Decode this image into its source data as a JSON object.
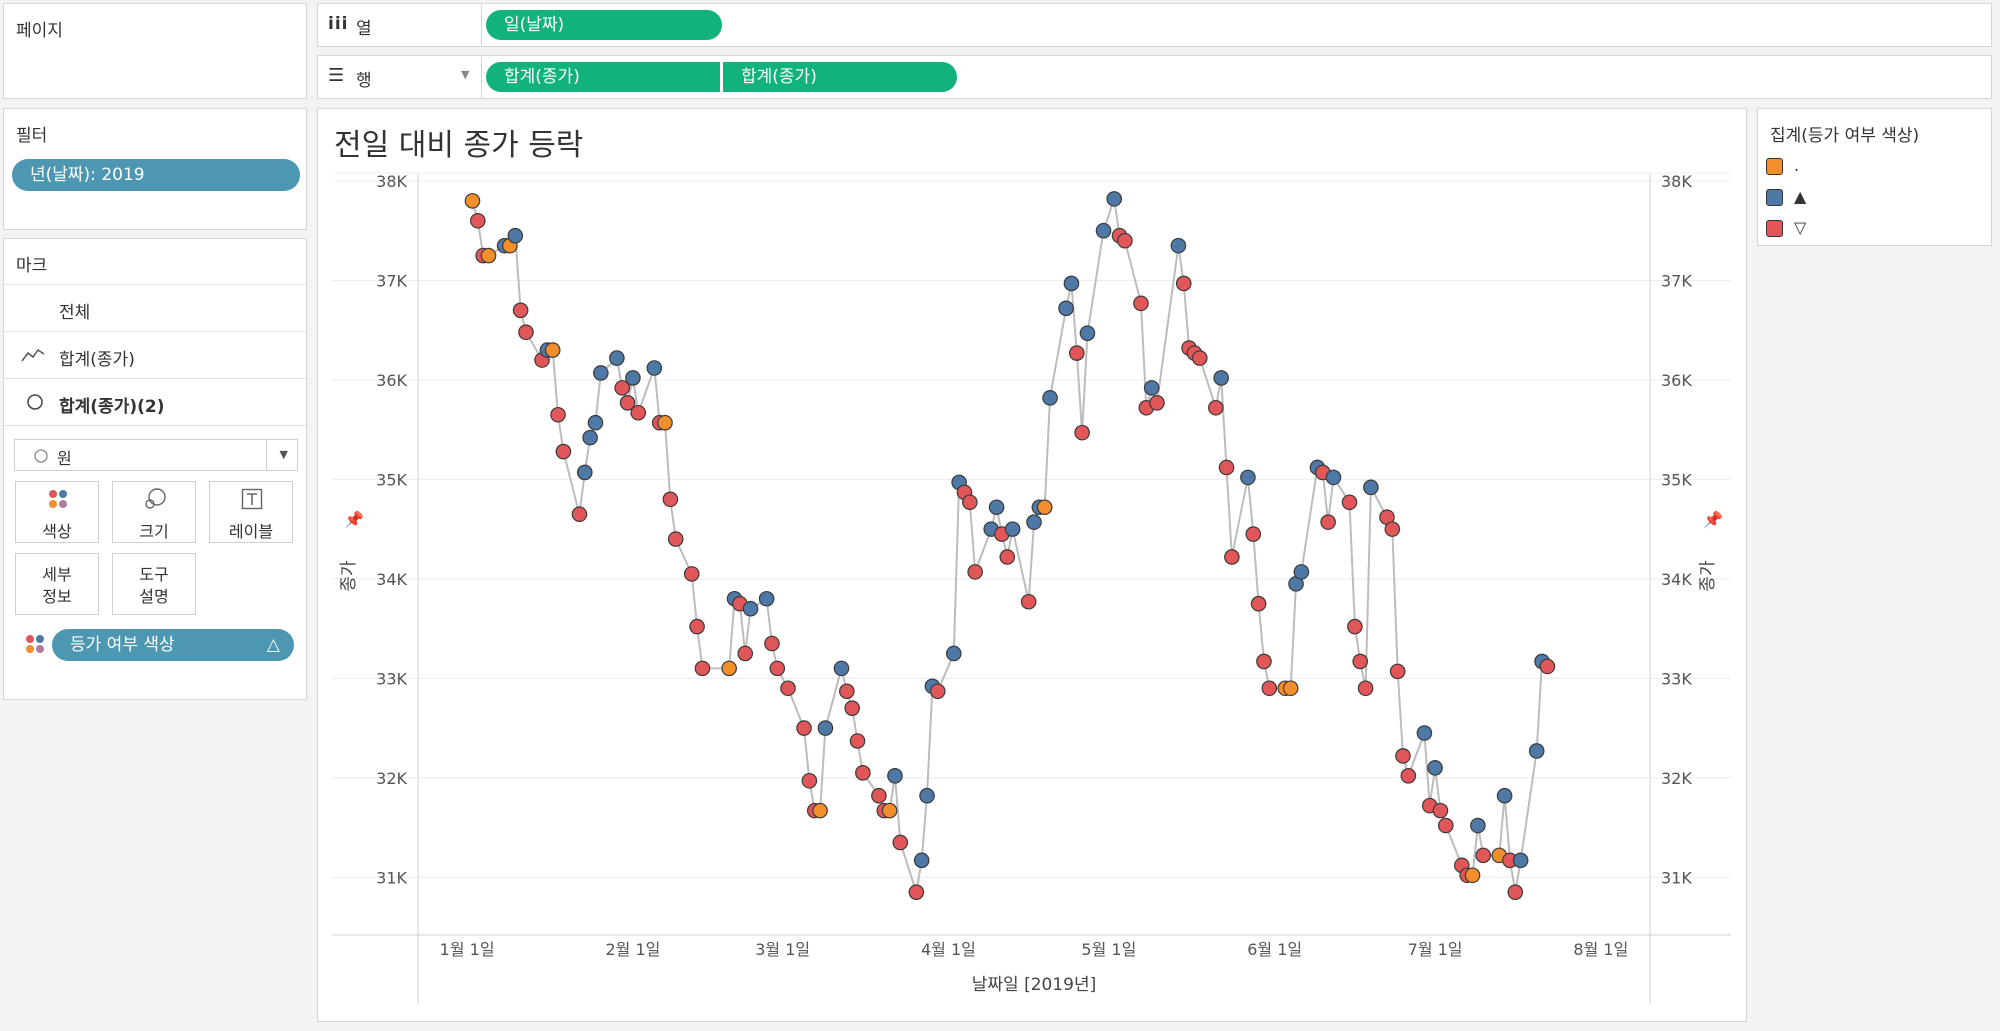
{
  "pages_panel": {
    "title": "페이지"
  },
  "columns_shelf": {
    "icon": "iii",
    "label": "열",
    "pills": [
      "일(날짜)"
    ]
  },
  "rows_shelf": {
    "label": "행",
    "pills": [
      "합계(종가)",
      "합계(종가)"
    ]
  },
  "filters_panel": {
    "title": "필터",
    "pills": [
      "년(날짜): 2019"
    ]
  },
  "marks_panel": {
    "title": "마크",
    "items": [
      {
        "label": "전체"
      },
      {
        "label": "합계(종가)"
      },
      {
        "label": "합계(종가)(2)"
      }
    ],
    "mark_type": "원",
    "buttons": [
      {
        "label": "색상"
      },
      {
        "label": "크기"
      },
      {
        "label": "레이블"
      },
      {
        "label": "세부\n정보"
      },
      {
        "label": "도구\n설명"
      }
    ],
    "color_field": "등가 여부 색상"
  },
  "legend": {
    "title": "집계(등가 여부 색상)",
    "items": [
      {
        "label": ".",
        "color": "#f28e2b"
      },
      {
        "label": "▲",
        "color": "#4e79a7"
      },
      {
        "label": "▽",
        "color": "#e15759"
      }
    ]
  },
  "chart_data": {
    "type": "line",
    "title": "전일 대비 종가 등락",
    "xlabel": "날짜일 [2019년]",
    "ylabel_left": "종가",
    "ylabel_right": "종가",
    "x_tick_labels": [
      "1월 1일",
      "2월 1일",
      "3월 1일",
      "4월 1일",
      "5월 1일",
      "6월 1일",
      "7월 1일",
      "8월 1일"
    ],
    "x_tick_days": [
      1,
      32,
      60,
      91,
      121,
      152,
      182,
      213
    ],
    "y_tick_labels": [
      "31K",
      "32K",
      "33K",
      "34K",
      "35K",
      "36K",
      "37K",
      "38K"
    ],
    "y_ticks": [
      31000,
      32000,
      33000,
      34000,
      35000,
      36000,
      37000,
      38000
    ],
    "ylim": [
      30500,
      38000
    ],
    "xlim": [
      -8,
      222
    ],
    "line_color": "#bcbcbc",
    "colors": {
      ".": "#f28e2b",
      "▲": "#4e79a7",
      "▽": "#e15759"
    },
    "series": [
      {
        "day": 2,
        "close": 37800,
        "sign": "."
      },
      {
        "day": 3,
        "close": 37600,
        "sign": "▽"
      },
      {
        "day": 4,
        "close": 37250,
        "sign": "▽"
      },
      {
        "day": 5,
        "close": 37250,
        "sign": "."
      },
      {
        "day": 8,
        "close": 37350,
        "sign": "▲"
      },
      {
        "day": 9,
        "close": 37350,
        "sign": "."
      },
      {
        "day": 10,
        "close": 37450,
        "sign": "▲"
      },
      {
        "day": 11,
        "close": 36700,
        "sign": "▽"
      },
      {
        "day": 12,
        "close": 36480,
        "sign": "▽"
      },
      {
        "day": 15,
        "close": 36200,
        "sign": "▽"
      },
      {
        "day": 16,
        "close": 36300,
        "sign": "▲"
      },
      {
        "day": 17,
        "close": 36300,
        "sign": "."
      },
      {
        "day": 18,
        "close": 35650,
        "sign": "▽"
      },
      {
        "day": 19,
        "close": 35280,
        "sign": "▽"
      },
      {
        "day": 22,
        "close": 34650,
        "sign": "▽"
      },
      {
        "day": 23,
        "close": 35070,
        "sign": "▲"
      },
      {
        "day": 24,
        "close": 35420,
        "sign": "▲"
      },
      {
        "day": 25,
        "close": 35570,
        "sign": "▲"
      },
      {
        "day": 26,
        "close": 36070,
        "sign": "▲"
      },
      {
        "day": 29,
        "close": 36220,
        "sign": "▲"
      },
      {
        "day": 30,
        "close": 35920,
        "sign": "▽"
      },
      {
        "day": 31,
        "close": 35770,
        "sign": "▽"
      },
      {
        "day": 32,
        "close": 36020,
        "sign": "▲"
      },
      {
        "day": 33,
        "close": 35670,
        "sign": "▽"
      },
      {
        "day": 36,
        "close": 36120,
        "sign": "▲"
      },
      {
        "day": 37,
        "close": 35570,
        "sign": "▽"
      },
      {
        "day": 38,
        "close": 35570,
        "sign": "."
      },
      {
        "day": 39,
        "close": 34800,
        "sign": "▽"
      },
      {
        "day": 40,
        "close": 34400,
        "sign": "▽"
      },
      {
        "day": 43,
        "close": 34050,
        "sign": "▽"
      },
      {
        "day": 44,
        "close": 33520,
        "sign": "▽"
      },
      {
        "day": 45,
        "close": 33100,
        "sign": "▽"
      },
      {
        "day": 50,
        "close": 33100,
        "sign": "."
      },
      {
        "day": 51,
        "close": 33800,
        "sign": "▲"
      },
      {
        "day": 52,
        "close": 33750,
        "sign": "▽"
      },
      {
        "day": 53,
        "close": 33250,
        "sign": "▽"
      },
      {
        "day": 54,
        "close": 33700,
        "sign": "▲"
      },
      {
        "day": 57,
        "close": 33800,
        "sign": "▲"
      },
      {
        "day": 58,
        "close": 33350,
        "sign": "▽"
      },
      {
        "day": 59,
        "close": 33100,
        "sign": "▽"
      },
      {
        "day": 61,
        "close": 32900,
        "sign": "▽"
      },
      {
        "day": 64,
        "close": 32500,
        "sign": "▽"
      },
      {
        "day": 65,
        "close": 31970,
        "sign": "▽"
      },
      {
        "day": 66,
        "close": 31670,
        "sign": "▽"
      },
      {
        "day": 67,
        "close": 31670,
        "sign": "."
      },
      {
        "day": 68,
        "close": 32500,
        "sign": "▲"
      },
      {
        "day": 71,
        "close": 33100,
        "sign": "▲"
      },
      {
        "day": 72,
        "close": 32870,
        "sign": "▽"
      },
      {
        "day": 73,
        "close": 32700,
        "sign": "▽"
      },
      {
        "day": 74,
        "close": 32370,
        "sign": "▽"
      },
      {
        "day": 75,
        "close": 32050,
        "sign": "▽"
      },
      {
        "day": 78,
        "close": 31820,
        "sign": "▽"
      },
      {
        "day": 79,
        "close": 31670,
        "sign": "▽"
      },
      {
        "day": 80,
        "close": 31670,
        "sign": "."
      },
      {
        "day": 81,
        "close": 32020,
        "sign": "▲"
      },
      {
        "day": 82,
        "close": 31350,
        "sign": "▽"
      },
      {
        "day": 85,
        "close": 30850,
        "sign": "▽"
      },
      {
        "day": 86,
        "close": 31170,
        "sign": "▲"
      },
      {
        "day": 87,
        "close": 31820,
        "sign": "▲"
      },
      {
        "day": 88,
        "close": 32920,
        "sign": "▲"
      },
      {
        "day": 89,
        "close": 32870,
        "sign": "▽"
      },
      {
        "day": 92,
        "close": 33250,
        "sign": "▲"
      },
      {
        "day": 93,
        "close": 34970,
        "sign": "▲"
      },
      {
        "day": 94,
        "close": 34870,
        "sign": "▽"
      },
      {
        "day": 95,
        "close": 34770,
        "sign": "▽"
      },
      {
        "day": 96,
        "close": 34070,
        "sign": "▽"
      },
      {
        "day": 99,
        "close": 34500,
        "sign": "▲"
      },
      {
        "day": 100,
        "close": 34720,
        "sign": "▲"
      },
      {
        "day": 101,
        "close": 34450,
        "sign": "▽"
      },
      {
        "day": 102,
        "close": 34220,
        "sign": "▽"
      },
      {
        "day": 103,
        "close": 34500,
        "sign": "▲"
      },
      {
        "day": 106,
        "close": 33770,
        "sign": "▽"
      },
      {
        "day": 107,
        "close": 34570,
        "sign": "▲"
      },
      {
        "day": 108,
        "close": 34720,
        "sign": "▲"
      },
      {
        "day": 109,
        "close": 34720,
        "sign": "."
      },
      {
        "day": 110,
        "close": 35820,
        "sign": "▲"
      },
      {
        "day": 113,
        "close": 36720,
        "sign": "▲"
      },
      {
        "day": 114,
        "close": 36970,
        "sign": "▲"
      },
      {
        "day": 115,
        "close": 36270,
        "sign": "▽"
      },
      {
        "day": 116,
        "close": 35470,
        "sign": "▽"
      },
      {
        "day": 117,
        "close": 36470,
        "sign": "▲"
      },
      {
        "day": 120,
        "close": 37500,
        "sign": "▲"
      },
      {
        "day": 122,
        "close": 37820,
        "sign": "▲"
      },
      {
        "day": 123,
        "close": 37450,
        "sign": "▽"
      },
      {
        "day": 124,
        "close": 37400,
        "sign": "▽"
      },
      {
        "day": 127,
        "close": 36770,
        "sign": "▽"
      },
      {
        "day": 128,
        "close": 35720,
        "sign": "▽"
      },
      {
        "day": 129,
        "close": 35920,
        "sign": "▲"
      },
      {
        "day": 130,
        "close": 35770,
        "sign": "▽"
      },
      {
        "day": 134,
        "close": 37350,
        "sign": "▲"
      },
      {
        "day": 135,
        "close": 36970,
        "sign": "▽"
      },
      {
        "day": 136,
        "close": 36320,
        "sign": "▽"
      },
      {
        "day": 137,
        "close": 36270,
        "sign": "▽"
      },
      {
        "day": 138,
        "close": 36220,
        "sign": "▽"
      },
      {
        "day": 141,
        "close": 35720,
        "sign": "▽"
      },
      {
        "day": 142,
        "close": 36020,
        "sign": "▲"
      },
      {
        "day": 143,
        "close": 35120,
        "sign": "▽"
      },
      {
        "day": 144,
        "close": 34220,
        "sign": "▽"
      },
      {
        "day": 147,
        "close": 35020,
        "sign": "▲"
      },
      {
        "day": 148,
        "close": 34450,
        "sign": "▽"
      },
      {
        "day": 149,
        "close": 33750,
        "sign": "▽"
      },
      {
        "day": 150,
        "close": 33170,
        "sign": "▽"
      },
      {
        "day": 151,
        "close": 32900,
        "sign": "▽"
      },
      {
        "day": 154,
        "close": 32900,
        "sign": "."
      },
      {
        "day": 155,
        "close": 32900,
        "sign": "."
      },
      {
        "day": 156,
        "close": 33950,
        "sign": "▲"
      },
      {
        "day": 157,
        "close": 34070,
        "sign": "▲"
      },
      {
        "day": 160,
        "close": 35120,
        "sign": "▲"
      },
      {
        "day": 161,
        "close": 35070,
        "sign": "▽"
      },
      {
        "day": 162,
        "close": 34570,
        "sign": "▽"
      },
      {
        "day": 163,
        "close": 35020,
        "sign": "▲"
      },
      {
        "day": 166,
        "close": 34770,
        "sign": "▽"
      },
      {
        "day": 167,
        "close": 33520,
        "sign": "▽"
      },
      {
        "day": 168,
        "close": 33170,
        "sign": "▽"
      },
      {
        "day": 169,
        "close": 32900,
        "sign": "▽"
      },
      {
        "day": 170,
        "close": 34920,
        "sign": "▲"
      },
      {
        "day": 173,
        "close": 34620,
        "sign": "▽"
      },
      {
        "day": 174,
        "close": 34500,
        "sign": "▽"
      },
      {
        "day": 175,
        "close": 33070,
        "sign": "▽"
      },
      {
        "day": 176,
        "close": 32220,
        "sign": "▽"
      },
      {
        "day": 177,
        "close": 32020,
        "sign": "▽"
      },
      {
        "day": 180,
        "close": 32450,
        "sign": "▲"
      },
      {
        "day": 181,
        "close": 31720,
        "sign": "▽"
      },
      {
        "day": 182,
        "close": 32100,
        "sign": "▲"
      },
      {
        "day": 183,
        "close": 31670,
        "sign": "▽"
      },
      {
        "day": 184,
        "close": 31520,
        "sign": "▽"
      },
      {
        "day": 187,
        "close": 31120,
        "sign": "▽"
      },
      {
        "day": 188,
        "close": 31020,
        "sign": "▽"
      },
      {
        "day": 189,
        "close": 31020,
        "sign": "."
      },
      {
        "day": 190,
        "close": 31520,
        "sign": "▲"
      },
      {
        "day": 191,
        "close": 31220,
        "sign": "▽"
      },
      {
        "day": 194,
        "close": 31220,
        "sign": "."
      },
      {
        "day": 195,
        "close": 31820,
        "sign": "▲"
      },
      {
        "day": 196,
        "close": 31170,
        "sign": "▽"
      },
      {
        "day": 197,
        "close": 30850,
        "sign": "▽"
      },
      {
        "day": 198,
        "close": 31170,
        "sign": "▲"
      },
      {
        "day": 201,
        "close": 32270,
        "sign": "▲"
      },
      {
        "day": 202,
        "close": 33170,
        "sign": "▲"
      },
      {
        "day": 203,
        "close": 33120,
        "sign": "▽"
      }
    ]
  }
}
